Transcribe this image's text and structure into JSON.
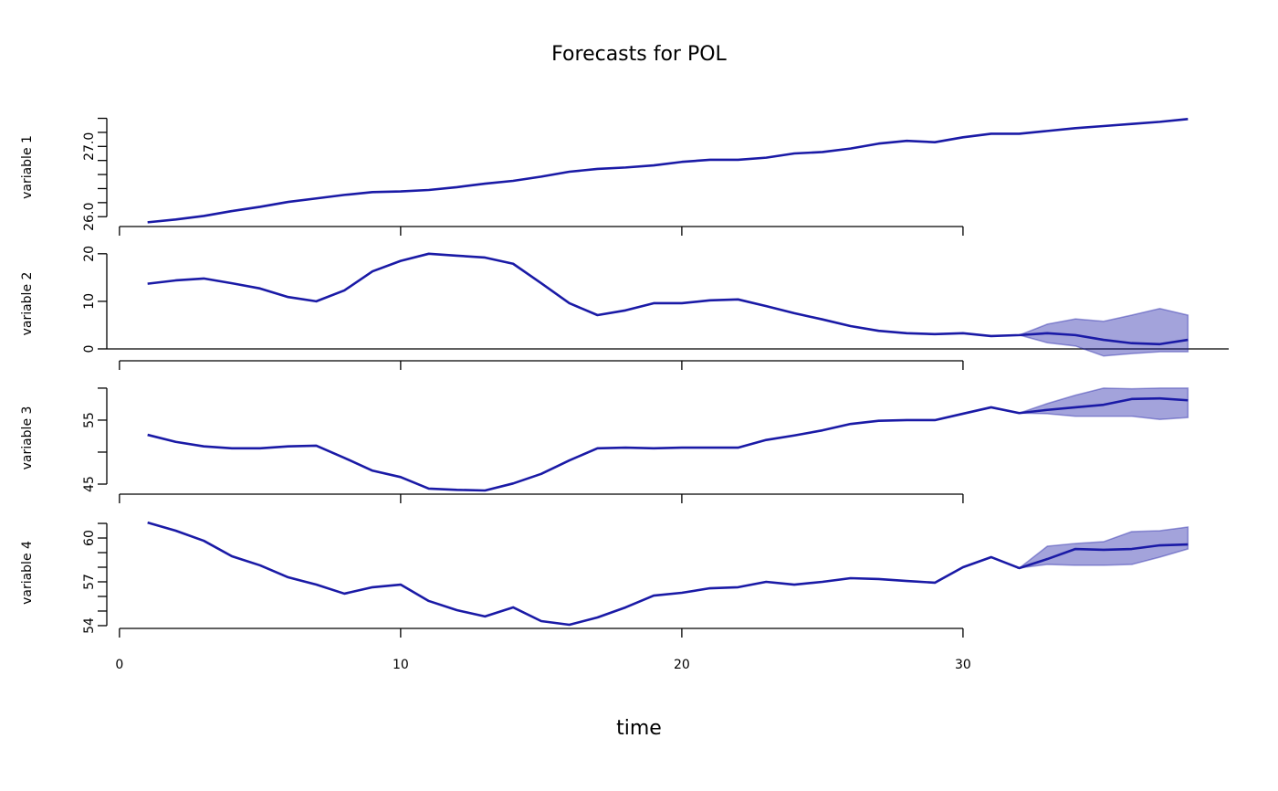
{
  "title": "Forecasts for POL",
  "x_label": "time",
  "xlim": [
    -0.45,
    39.45
  ],
  "xticks": [
    0,
    10,
    20,
    30
  ],
  "chart_data": [
    {
      "type": "line",
      "y_label": "variable 1",
      "ylim": [
        25.86,
        27.55
      ],
      "yticks": [
        26.0,
        27.0
      ],
      "yticks_minor": [
        26.2,
        26.4,
        26.6,
        26.8,
        27.2,
        27.4
      ],
      "yticks_labels": [
        "26.0",
        "27.0"
      ],
      "x": [
        1,
        2,
        3,
        4,
        5,
        6,
        7,
        8,
        9,
        10,
        11,
        12,
        13,
        14,
        15,
        16,
        17,
        18,
        19,
        20,
        21,
        22,
        23,
        24,
        25,
        26,
        27,
        28,
        29,
        30,
        31,
        32,
        33,
        34,
        35,
        36,
        37,
        38
      ],
      "series": [
        {
          "color": "#1a1aa6",
          "values": [
            25.92,
            25.96,
            26.01,
            26.08,
            26.14,
            26.21,
            26.26,
            26.31,
            26.35,
            26.36,
            26.38,
            26.42,
            26.47,
            26.51,
            26.57,
            26.64,
            26.68,
            26.7,
            26.73,
            26.78,
            26.81,
            26.81,
            26.84,
            26.9,
            26.92,
            26.97,
            27.04,
            27.08,
            27.06,
            27.13,
            27.18,
            27.18,
            27.22,
            27.26,
            27.29,
            27.32,
            27.35,
            27.39
          ]
        }
      ]
    },
    {
      "type": "line",
      "y_label": "variable 2",
      "ylim": [
        -2.5,
        21.5
      ],
      "yticks": [
        0,
        10,
        20
      ],
      "hline": 0,
      "x": [
        1,
        2,
        3,
        4,
        5,
        6,
        7,
        8,
        9,
        10,
        11,
        12,
        13,
        14,
        15,
        16,
        17,
        18,
        19,
        20,
        21,
        22,
        23,
        24,
        25,
        26,
        27,
        28,
        29,
        30,
        31,
        32,
        33,
        34,
        35,
        36,
        37,
        38
      ],
      "series": [
        {
          "color": "#1a1aa6",
          "values": [
            13.7,
            14.4,
            14.8,
            13.8,
            12.7,
            10.9,
            10.0,
            12.3,
            16.3,
            18.5,
            20.0,
            19.6,
            19.2,
            17.9,
            13.8,
            9.6,
            7.1,
            8.1,
            9.6,
            9.6,
            10.2,
            10.4,
            9.0,
            7.5,
            6.2,
            4.8,
            3.8,
            3.3,
            3.1,
            3.3,
            2.7,
            2.9,
            3.3,
            2.9,
            1.9,
            1.2,
            1.0,
            1.9
          ]
        }
      ],
      "band": {
        "color": "#1a1aa6",
        "x": [
          32,
          33,
          34,
          35,
          36,
          37,
          38
        ],
        "lower": [
          2.9,
          1.3,
          0.6,
          -1.5,
          -1.0,
          -0.6,
          -0.6
        ],
        "upper": [
          2.9,
          5.2,
          6.3,
          5.8,
          7.1,
          8.5,
          7.1
        ]
      }
    },
    {
      "type": "line",
      "y_label": "variable 3",
      "ylim": [
        43.43,
        60.99
      ],
      "yticks": [
        45,
        55
      ],
      "yticks_minor": [
        50,
        60
      ],
      "x": [
        1,
        2,
        3,
        4,
        5,
        6,
        7,
        8,
        9,
        10,
        11,
        12,
        13,
        14,
        15,
        16,
        17,
        18,
        19,
        20,
        21,
        22,
        23,
        24,
        25,
        26,
        27,
        28,
        29,
        30,
        31,
        32,
        33,
        34,
        35,
        36,
        37,
        38
      ],
      "series": [
        {
          "color": "#1a1aa6",
          "values": [
            52.7,
            51.6,
            50.9,
            50.6,
            50.6,
            50.9,
            51.0,
            49.1,
            47.1,
            46.1,
            44.3,
            44.1,
            44.0,
            45.1,
            46.6,
            48.7,
            50.6,
            50.7,
            50.6,
            50.7,
            50.7,
            50.7,
            51.9,
            52.6,
            53.4,
            54.4,
            54.9,
            55.0,
            55.0,
            56.0,
            57.0,
            56.1,
            56.6,
            57.0,
            57.4,
            58.3,
            58.4,
            58.1
          ]
        }
      ],
      "band": {
        "color": "#1a1aa6",
        "x": [
          32,
          33,
          34,
          35,
          36,
          37,
          38
        ],
        "lower": [
          56.1,
          56.0,
          55.6,
          55.6,
          55.6,
          55.1,
          55.4
        ],
        "upper": [
          56.1,
          57.6,
          58.9,
          60.0,
          59.9,
          60.0,
          60.0
        ]
      }
    },
    {
      "type": "line",
      "y_label": "variable 4",
      "ylim": [
        53.81,
        61.44
      ],
      "yticks": [
        54,
        57,
        60
      ],
      "yticks_minor": [
        55,
        56,
        58,
        59,
        61
      ],
      "x": [
        1,
        2,
        3,
        4,
        5,
        6,
        7,
        8,
        9,
        10,
        11,
        12,
        13,
        14,
        15,
        16,
        17,
        18,
        19,
        20,
        21,
        22,
        23,
        24,
        25,
        26,
        27,
        28,
        29,
        30,
        31,
        32,
        33,
        34,
        35,
        36,
        37,
        38
      ],
      "series": [
        {
          "color": "#1a1aa6",
          "values": [
            61.06,
            60.5,
            59.81,
            58.75,
            58.13,
            57.31,
            56.81,
            56.19,
            56.63,
            56.81,
            55.69,
            55.06,
            54.63,
            55.25,
            54.31,
            54.06,
            54.56,
            55.25,
            56.06,
            56.25,
            56.56,
            56.63,
            57.0,
            56.81,
            57.0,
            57.25,
            57.19,
            57.06,
            56.94,
            58.0,
            58.69,
            57.94,
            58.56,
            59.25,
            59.19,
            59.25,
            59.5,
            59.56
          ]
        }
      ],
      "band": {
        "color": "#1a1aa6",
        "x": [
          32,
          33,
          34,
          35,
          36,
          37,
          38
        ],
        "lower": [
          57.94,
          58.19,
          58.13,
          58.13,
          58.19,
          58.69,
          59.25
        ],
        "upper": [
          57.94,
          59.44,
          59.63,
          59.75,
          60.44,
          60.5,
          60.75
        ]
      }
    }
  ]
}
